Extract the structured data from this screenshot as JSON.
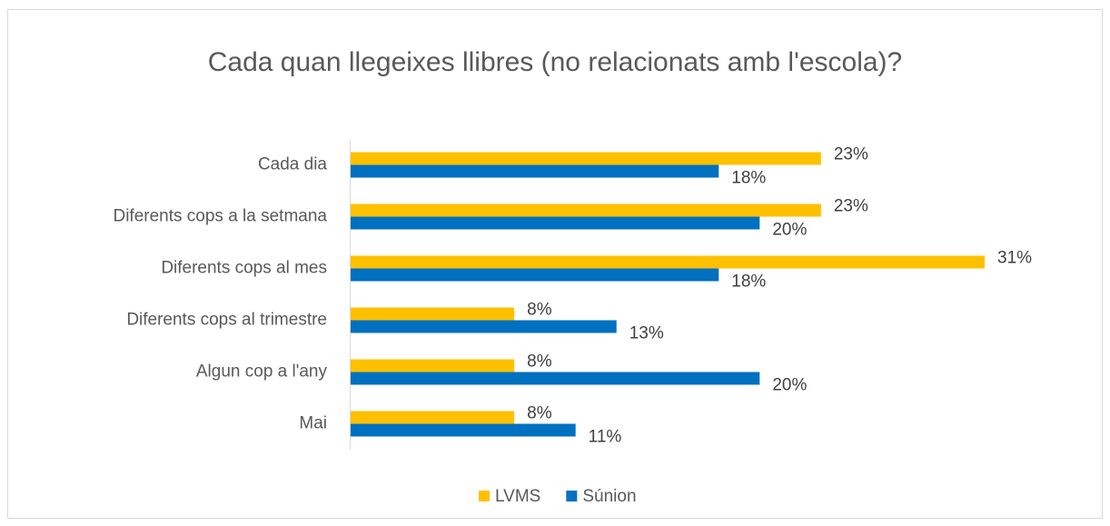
{
  "chart_data": {
    "type": "hbar",
    "title": "Cada quan llegeixes llibres (no relacionats amb l'escola)?",
    "categories": [
      "Cada dia",
      "Diferents cops a la setmana",
      "Diferents cops al mes",
      "Diferents cops al trimestre",
      "Algun cop a l'any",
      "Mai"
    ],
    "series": [
      {
        "name": "LVMS",
        "color": "#FFC000",
        "values": [
          23,
          23,
          31,
          8,
          8,
          8
        ],
        "value_labels": [
          "23%",
          "23%",
          "31%",
          "8%",
          "8%",
          "8%"
        ]
      },
      {
        "name": "Súnion",
        "color": "#0070C0",
        "values": [
          18,
          20,
          18,
          13,
          20,
          11
        ],
        "value_labels": [
          "18%",
          "20%",
          "18%",
          "13%",
          "20%",
          "11%"
        ]
      }
    ],
    "legend": "bottom"
  }
}
